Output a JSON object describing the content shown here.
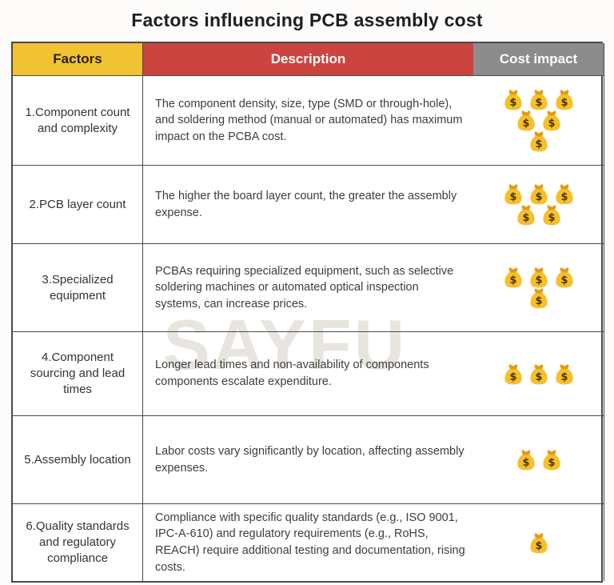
{
  "page": {
    "title": "Factors influencing PCB assembly cost"
  },
  "watermark": {
    "text": "SAYFU"
  },
  "colors": {
    "header_factors_bg": "#F1C232",
    "header_description_bg": "#CC4440",
    "header_cost_bg": "#8C8C8C",
    "header_light_text": "#FFFFFF",
    "table_border": "#4A4A4A",
    "bag_body": "#F6C02C",
    "bag_knot": "#E39C17",
    "bag_symbol": "#4A3800",
    "watermark_color": "#E8E5E0"
  },
  "table": {
    "cost_icon": "money-bag-icon",
    "headers": [
      {
        "label": "Factors"
      },
      {
        "label": "Description"
      },
      {
        "label": "Cost impact"
      }
    ],
    "rows": [
      {
        "factor": "1.Component count and complexity",
        "description": "The component density, size, type (SMD or through-hole), and soldering method (manual or automated) has maximum impact on the PCBA cost.",
        "impact_bags": 6,
        "impact_layout": [
          3,
          2,
          1
        ]
      },
      {
        "factor": "2.PCB layer count",
        "description": "The higher the board layer count, the greater the assembly expense.",
        "impact_bags": 5,
        "impact_layout": [
          3,
          2
        ]
      },
      {
        "factor": "3.Specialized equipment",
        "description": "PCBAs requiring specialized equipment, such as selective soldering machines or automated optical inspection systems, can increase prices.",
        "impact_bags": 4,
        "impact_layout": [
          3,
          1
        ]
      },
      {
        "factor": "4.Component sourcing and lead times",
        "description": "Longer lead times and non-availability of components components escalate expenditure.",
        "impact_bags": 3,
        "impact_layout": [
          3
        ]
      },
      {
        "factor": "5.Assembly location",
        "description": "Labor costs vary significantly by location, affecting assembly expenses.",
        "impact_bags": 2,
        "impact_layout": [
          2
        ]
      },
      {
        "factor": "6.Quality standards and regulatory compliance",
        "description": "Compliance with specific quality standards (e.g., ISO 9001, IPC-A-610) and regulatory requirements (e.g., RoHS, REACH) require additional testing and documentation, rising costs.",
        "impact_bags": 1,
        "impact_layout": [
          1
        ]
      }
    ]
  },
  "chart_data": {
    "type": "table",
    "title": "Factors influencing PCB assembly cost",
    "categories": [
      "Component count and complexity",
      "PCB layer count",
      "Specialized equipment",
      "Component sourcing and lead times",
      "Assembly location",
      "Quality standards and regulatory compliance"
    ],
    "values": [
      6,
      5,
      4,
      3,
      2,
      1
    ],
    "ylabel": "Cost impact (money bags)"
  }
}
